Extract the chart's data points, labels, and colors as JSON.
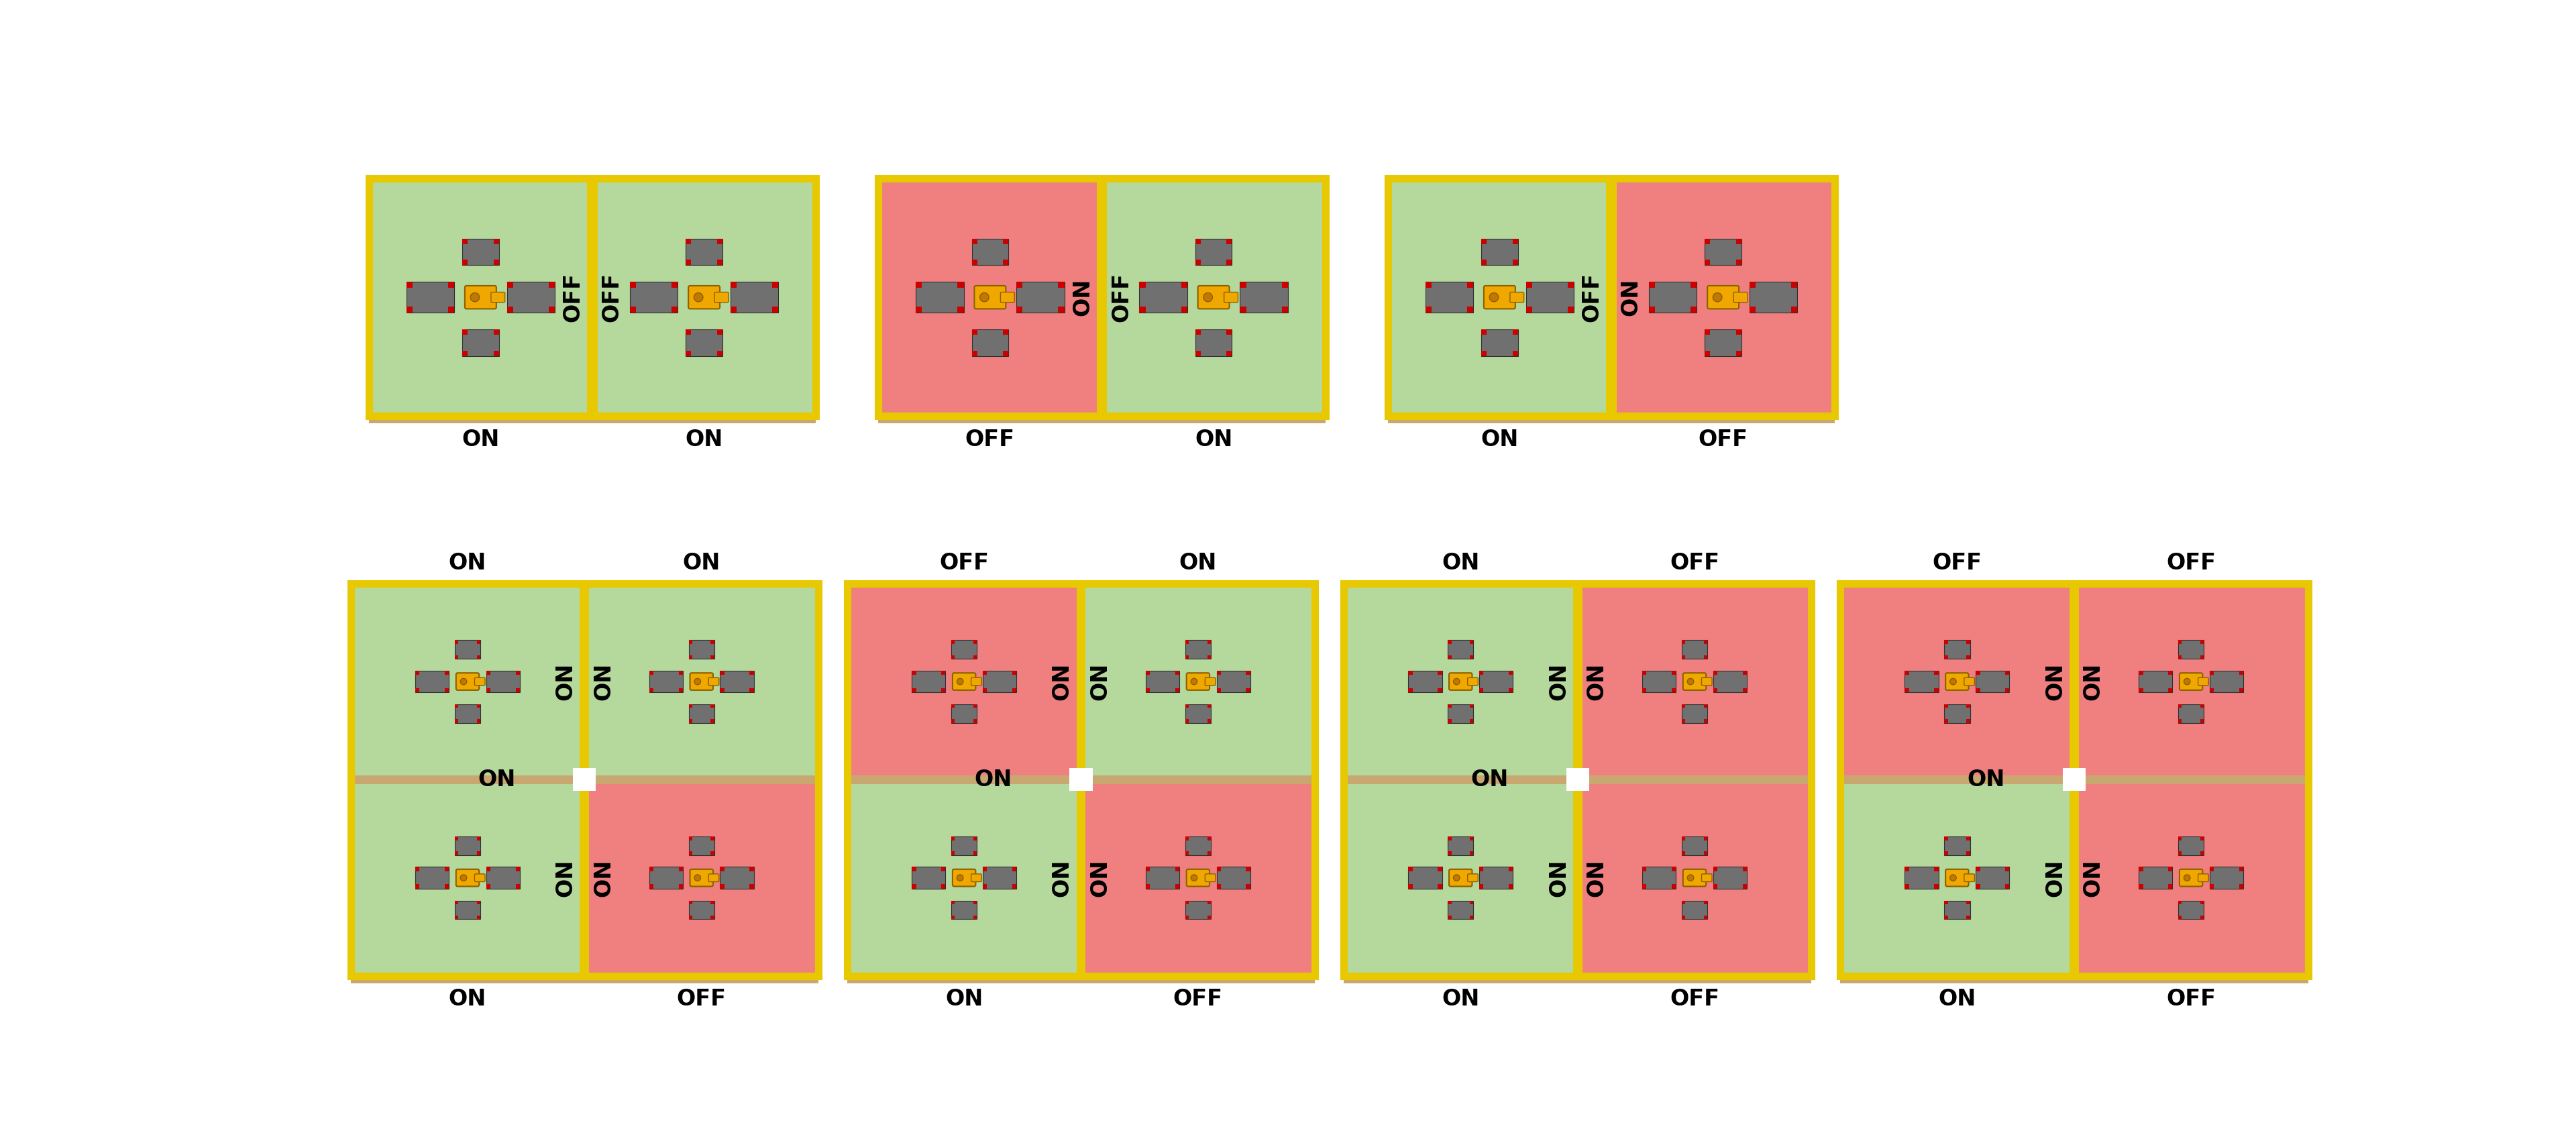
{
  "bg_color": "#ffffff",
  "green": "#b5d99c",
  "red": "#f08080",
  "yellow_border": "#e8c800",
  "tan_border": "#c8a870",
  "gray_block": "#707070",
  "red_corner": "#cc0000",
  "robot_yellow": "#f0a800",
  "robot_dark": "#c07800",
  "robot_outline": "#8b6000",
  "white": "#ffffff",
  "row1_configs": [
    {
      "left": "ON",
      "right": "ON",
      "div_left": "OFF",
      "div_right": "OFF",
      "bot_left": "ON",
      "bot_right": "ON"
    },
    {
      "left": "OFF",
      "right": "ON",
      "div_left": "ON",
      "div_right": "OFF",
      "bot_left": "OFF",
      "bot_right": "ON"
    },
    {
      "left": "ON",
      "right": "OFF",
      "div_left": "OFF",
      "div_right": "ON",
      "bot_left": "ON",
      "bot_right": "OFF"
    }
  ],
  "row2_configs": [
    {
      "tl": "ON",
      "tr": "ON",
      "bl": "ON",
      "br": "OFF",
      "top_l": "ON",
      "top_r": "ON",
      "hdiv": "ON",
      "vdiv_l": "ON",
      "vdiv_r": "ON",
      "bot_l": "ON",
      "bot_r": "OFF"
    },
    {
      "tl": "OFF",
      "tr": "ON",
      "bl": "ON",
      "br": "OFF",
      "top_l": "OFF",
      "top_r": "ON",
      "hdiv": "ON",
      "vdiv_l": "ON",
      "vdiv_r": "ON",
      "bot_l": "ON",
      "bot_r": "OFF"
    },
    {
      "tl": "ON",
      "tr": "OFF",
      "bl": "ON",
      "br": "OFF",
      "top_l": "ON",
      "top_r": "OFF",
      "hdiv": "ON",
      "vdiv_l": "ON",
      "vdiv_r": "ON",
      "bot_l": "ON",
      "bot_r": "OFF"
    },
    {
      "tl": "OFF",
      "tr": "OFF",
      "bl": "ON",
      "br": "OFF",
      "top_l": "OFF",
      "top_r": "OFF",
      "hdiv": "ON",
      "vdiv_l": "ON",
      "vdiv_r": "ON",
      "bot_l": "ON",
      "bot_r": "OFF"
    }
  ]
}
